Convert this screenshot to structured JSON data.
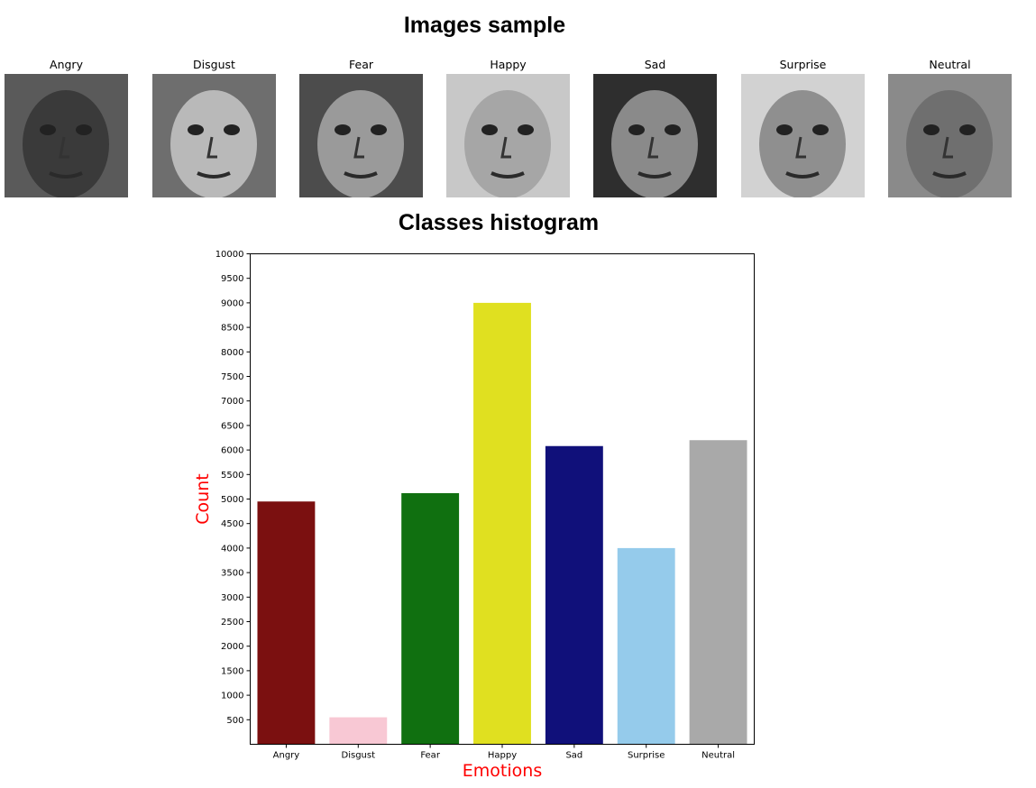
{
  "figure": {
    "images_title": "Images sample",
    "histogram_title": "Classes histogram"
  },
  "samples": [
    {
      "label": "Angry",
      "bg": "#5a5a5a",
      "skin": "#3a3a3a"
    },
    {
      "label": "Disgust",
      "bg": "#6e6e6e",
      "skin": "#b9b9b9"
    },
    {
      "label": "Fear",
      "bg": "#4c4c4c",
      "skin": "#9a9a9a"
    },
    {
      "label": "Happy",
      "bg": "#c8c8c8",
      "skin": "#a6a6a6"
    },
    {
      "label": "Sad",
      "bg": "#2e2e2e",
      "skin": "#8a8a8a"
    },
    {
      "label": "Surprise",
      "bg": "#d2d2d2",
      "skin": "#8f8f8f"
    },
    {
      "label": "Neutral",
      "bg": "#8a8a8a",
      "skin": "#6f6f6f"
    }
  ],
  "chart_data": {
    "type": "bar",
    "title": "Classes histogram",
    "xlabel": "Emotions",
    "ylabel": "Count",
    "label_color": "#ff0000",
    "categories": [
      "Angry",
      "Disgust",
      "Fear",
      "Happy",
      "Sad",
      "Surprise",
      "Neutral"
    ],
    "values": [
      4950,
      550,
      5120,
      9000,
      6080,
      4000,
      6200
    ],
    "colors": [
      "#7b1010",
      "#f8c8d4",
      "#107010",
      "#e0e020",
      "#10107a",
      "#95cbeb",
      "#a9a9a9"
    ],
    "ylim": [
      0,
      10000
    ],
    "yticks": [
      500,
      1000,
      1500,
      2000,
      2500,
      3000,
      3500,
      4000,
      4500,
      5000,
      5500,
      6000,
      6500,
      7000,
      7500,
      8000,
      8500,
      9000,
      9500,
      10000
    ],
    "grid": false,
    "legend": "none"
  }
}
